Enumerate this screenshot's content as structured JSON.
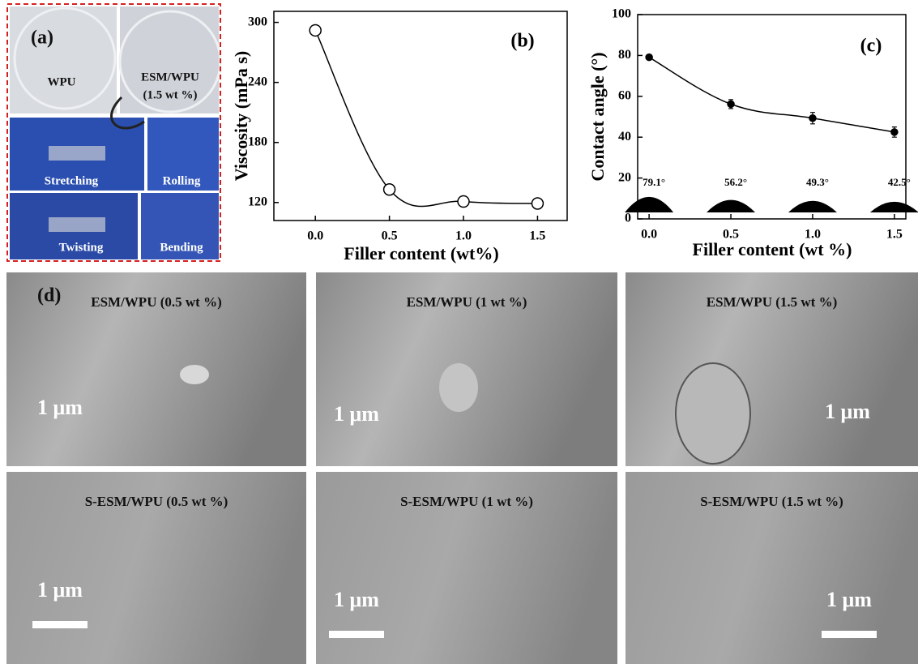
{
  "chart_data": [
    {
      "type": "line",
      "panel": "(b)",
      "marker": "open-circle",
      "color": "#000000",
      "x_label": "Filler content (wt%)",
      "y_label": "Viscosity  (mPa s)",
      "x": [
        0,
        0.5,
        1,
        1.5
      ],
      "values": [
        292,
        133,
        121,
        119
      ],
      "xlim": [
        -0.28,
        1.7
      ],
      "ylim": [
        102,
        311
      ],
      "xticks": [
        {
          "value": 0,
          "label": "0.0"
        },
        {
          "value": 0.5,
          "label": "0.5"
        },
        {
          "value": 1,
          "label": "1.0"
        },
        {
          "value": 1.5,
          "label": "1.5"
        }
      ],
      "yticks": [
        120,
        180,
        240,
        300
      ]
    },
    {
      "type": "line",
      "panel": "(c)",
      "marker": "filled-circle",
      "color": "#000000",
      "x_label": "Filler content (wt %)",
      "y_label": "Contact angle (°)",
      "x": [
        0,
        0.5,
        1,
        1.5
      ],
      "values": [
        79.1,
        56.2,
        49.3,
        42.5
      ],
      "value_labels": [
        "79.1°",
        "56.2°",
        "49.3°",
        "42.5°"
      ],
      "errors": [
        0.8,
        2.2,
        2.8,
        2.5
      ],
      "xlim": [
        -0.07,
        1.57
      ],
      "ylim": [
        0,
        100
      ],
      "xticks": [
        {
          "value": 0,
          "label": "0.0"
        },
        {
          "value": 0.5,
          "label": "0.5"
        },
        {
          "value": 1,
          "label": "1.0"
        },
        {
          "value": 1.5,
          "label": "1.5"
        }
      ],
      "yticks": [
        0,
        20,
        40,
        60,
        80,
        100
      ]
    }
  ],
  "panel_a": {
    "label": "(a)",
    "photos": [
      "WPU",
      "ESM/WPU",
      "(1.5 wt %)",
      "Stretching",
      "Rolling",
      "Twisting",
      "Bending"
    ]
  },
  "panel_d": {
    "label": "(d)",
    "images": [
      {
        "label": "ESM/WPU  (0.5 wt %)",
        "scale": "1 μm"
      },
      {
        "label": "ESM/WPU  (1 wt %)",
        "scale": "1 μm"
      },
      {
        "label": "ESM/WPU  (1.5 wt %)",
        "scale": "1 μm"
      },
      {
        "label": "S-ESM/WPU  (0.5 wt %)",
        "scale": "1 μm"
      },
      {
        "label": "S-ESM/WPU  (1 wt %)",
        "scale": "1 μm"
      },
      {
        "label": "S-ESM/WPU  (1.5 wt %)",
        "scale": "1 μm"
      }
    ]
  }
}
